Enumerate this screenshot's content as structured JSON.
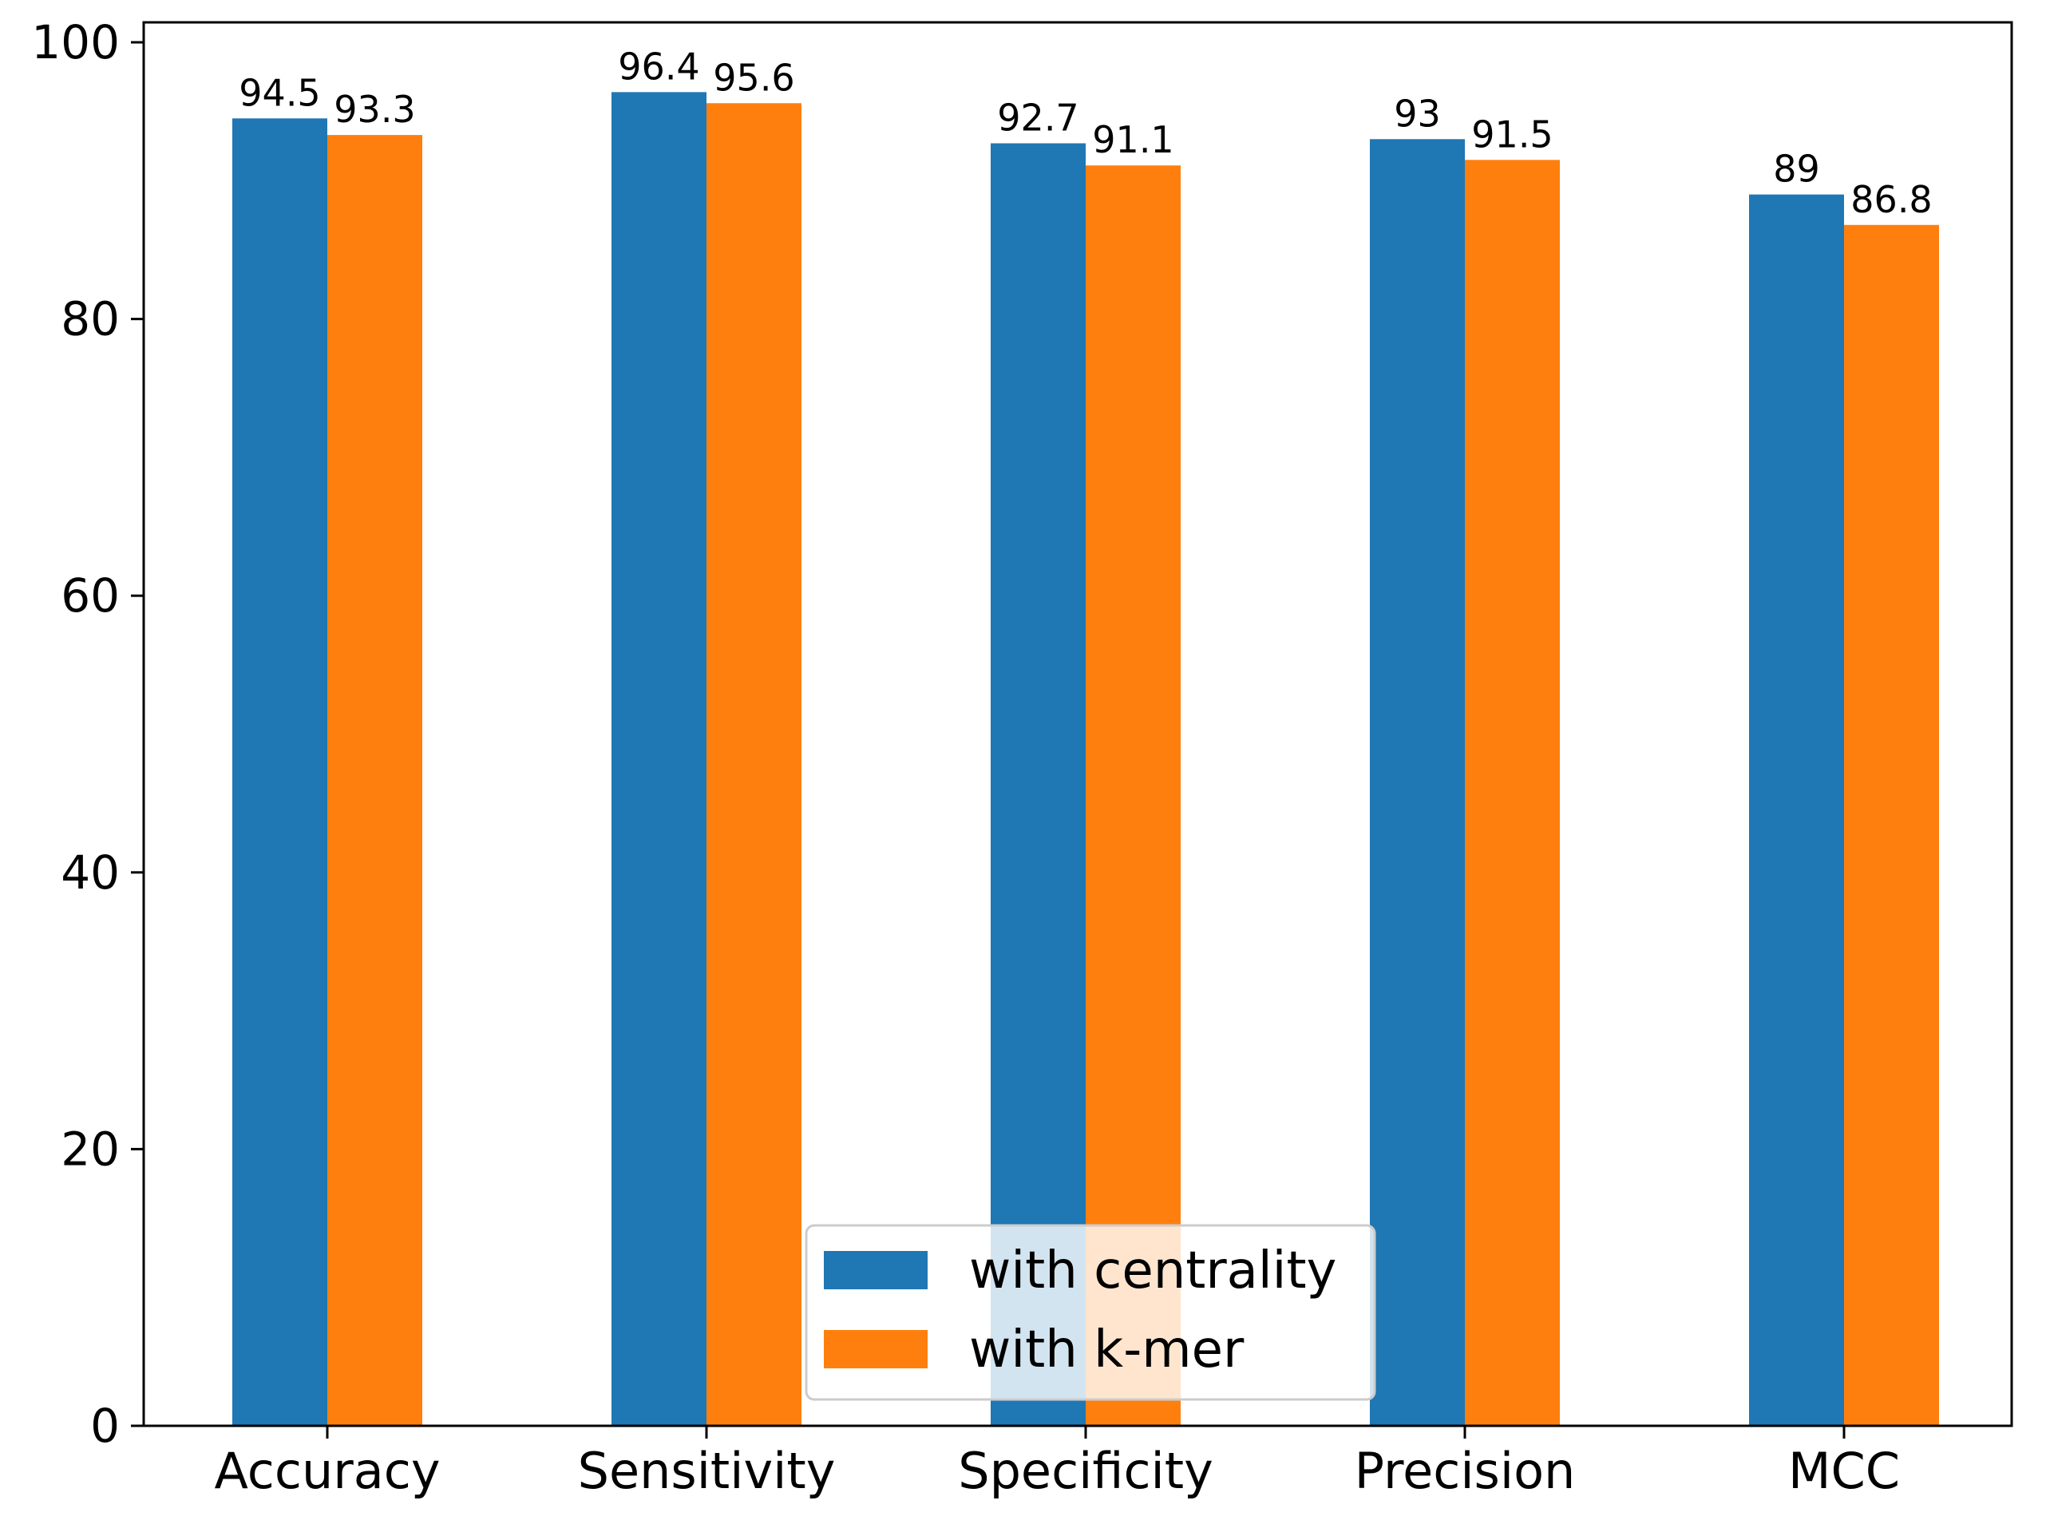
{
  "chart_data": {
    "type": "bar",
    "title": "",
    "xlabel": "",
    "ylabel": "",
    "categories": [
      "Accuracy",
      "Sensitivity",
      "Specificity",
      "Precision",
      "MCC"
    ],
    "series": [
      {
        "name": "with centrality",
        "color": "#1f77b4",
        "values": [
          94.5,
          96.4,
          92.7,
          93,
          89
        ],
        "labels": [
          "94.5",
          "96.4",
          "92.7",
          "93",
          "89"
        ]
      },
      {
        "name": "with k-mer",
        "color": "#ff7f0e",
        "values": [
          93.3,
          95.6,
          91.1,
          91.5,
          86.8
        ],
        "labels": [
          "93.3",
          "95.6",
          "91.1",
          "91.5",
          "86.8"
        ]
      }
    ],
    "ylim": [
      0,
      100
    ],
    "yticks": [
      0,
      20,
      40,
      60,
      80,
      100
    ],
    "ytick_labels": [
      "0",
      "20",
      "40",
      "60",
      "80",
      "100"
    ],
    "grid": false,
    "legend_position": "bottom-center"
  }
}
